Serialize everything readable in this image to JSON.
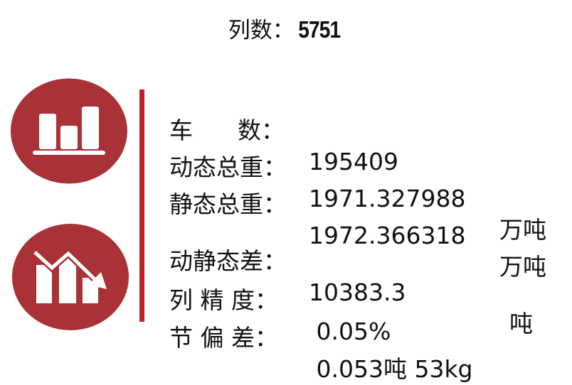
{
  "title": {
    "label": "列数：",
    "value": "5751"
  },
  "colors": {
    "circle": "#a83236",
    "divider": "#c01f25"
  },
  "icons": [
    "bar-chart-icon",
    "trend-down-icon"
  ],
  "stats": [
    {
      "label": "车      数：",
      "value": "195409",
      "unit": ""
    },
    {
      "label": "动态总重：",
      "value": "1971.327988",
      "unit": "万吨"
    },
    {
      "label": "静态总重：",
      "value": "1972.366318",
      "unit": "万吨"
    },
    {
      "label": "动静态差：",
      "value": "10383.3",
      "unit": "吨"
    },
    {
      "label": "列 精 度：",
      "value": " 0.05%",
      "unit": ""
    },
    {
      "label": "节 偏 差：",
      "value": " 0.053吨 53kg",
      "unit": ""
    }
  ]
}
